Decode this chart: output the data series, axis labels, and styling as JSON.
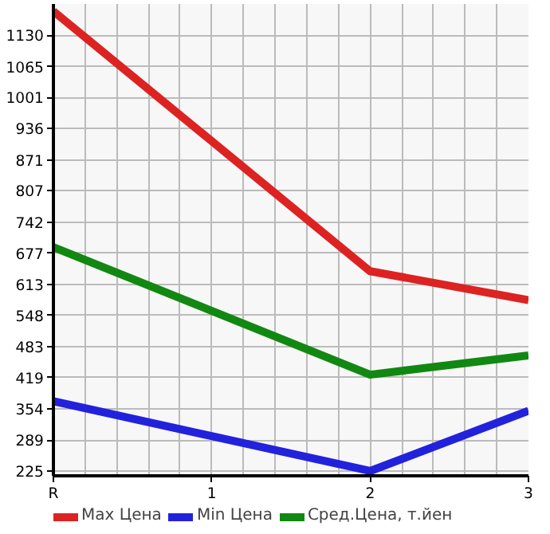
{
  "chart_data": {
    "type": "line",
    "categories": [
      "R",
      "1",
      "2",
      "3"
    ],
    "series": [
      {
        "name": "Max Цена",
        "color": "#dd2222",
        "values": [
          1180,
          null,
          640,
          580
        ]
      },
      {
        "name": "Min Цена",
        "color": "#2222dd",
        "values": [
          370,
          null,
          225,
          350
        ]
      },
      {
        "name": "Сред.Цена, т.йен",
        "color": "#118811",
        "values": [
          690,
          null,
          425,
          465
        ]
      }
    ],
    "ylim": [
      215,
      1195
    ],
    "yticks": [
      225,
      289,
      354,
      419,
      483,
      548,
      613,
      677,
      742,
      807,
      871,
      936,
      1001,
      1065,
      1130
    ],
    "grid": true,
    "legend": "bottom",
    "marker": "none",
    "line_style": "solid"
  }
}
